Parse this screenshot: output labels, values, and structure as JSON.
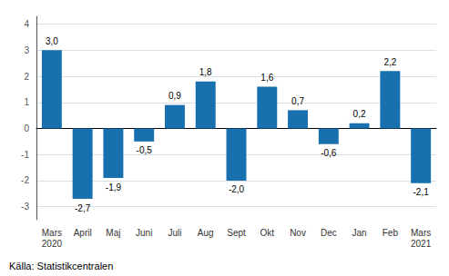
{
  "chart_data": {
    "type": "bar",
    "categories": [
      "Mars\n2020",
      "April",
      "Maj",
      "Juni",
      "Juli",
      "Aug",
      "Sept",
      "Okt",
      "Nov",
      "Dec",
      "Jan",
      "Feb",
      "Mars\n2021"
    ],
    "values": [
      3.0,
      -2.7,
      -1.9,
      -0.5,
      0.9,
      1.8,
      -2.0,
      1.6,
      0.7,
      -0.6,
      0.2,
      2.2,
      -2.1
    ],
    "value_labels": [
      "3,0",
      "-2,7",
      "-1,9",
      "-0,5",
      "0,9",
      "1,8",
      "-2,0",
      "1,6",
      "0,7",
      "-0,6",
      "0,2",
      "2,2",
      "-2,1"
    ],
    "data_labels": true,
    "color": "#1871ae",
    "ylim": [
      -3.5,
      4.3
    ],
    "yticks": [
      -3,
      -2,
      -1,
      0,
      1,
      2,
      3,
      4
    ],
    "grid": true,
    "annotations": [
      "Källa: Statistikcentralen"
    ]
  }
}
